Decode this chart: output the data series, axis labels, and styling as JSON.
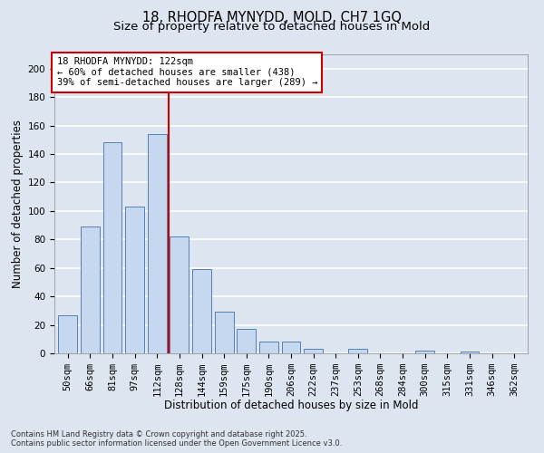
{
  "title_line1": "18, RHODFA MYNYDD, MOLD, CH7 1GQ",
  "title_line2": "Size of property relative to detached houses in Mold",
  "xlabel": "Distribution of detached houses by size in Mold",
  "ylabel": "Number of detached properties",
  "categories": [
    "50sqm",
    "66sqm",
    "81sqm",
    "97sqm",
    "112sqm",
    "128sqm",
    "144sqm",
    "159sqm",
    "175sqm",
    "190sqm",
    "206sqm",
    "222sqm",
    "237sqm",
    "253sqm",
    "268sqm",
    "284sqm",
    "300sqm",
    "315sqm",
    "331sqm",
    "346sqm",
    "362sqm"
  ],
  "values": [
    27,
    89,
    148,
    103,
    154,
    82,
    59,
    29,
    17,
    8,
    8,
    3,
    0,
    3,
    0,
    0,
    2,
    0,
    1,
    0,
    0
  ],
  "bar_color": "#c5d8f0",
  "bar_edge_color": "#5580b0",
  "vline_color": "#cc0000",
  "vline_x_index": 4,
  "annotation_text": "18 RHODFA MYNYDD: 122sqm\n← 60% of detached houses are smaller (438)\n39% of semi-detached houses are larger (289) →",
  "annotation_box_color": "#ffffff",
  "annotation_box_edge": "#cc0000",
  "ylim": [
    0,
    210
  ],
  "yticks": [
    0,
    20,
    40,
    60,
    80,
    100,
    120,
    140,
    160,
    180,
    200
  ],
  "background_color": "#dde5f0",
  "plot_bg_color": "#dde5f0",
  "grid_color": "#ffffff",
  "footer_text": "Contains HM Land Registry data © Crown copyright and database right 2025.\nContains public sector information licensed under the Open Government Licence v3.0.",
  "title_fontsize": 10.5,
  "subtitle_fontsize": 9.5,
  "label_fontsize": 8.5,
  "tick_fontsize": 7.5,
  "annotation_fontsize": 7.5,
  "footer_fontsize": 6.0
}
